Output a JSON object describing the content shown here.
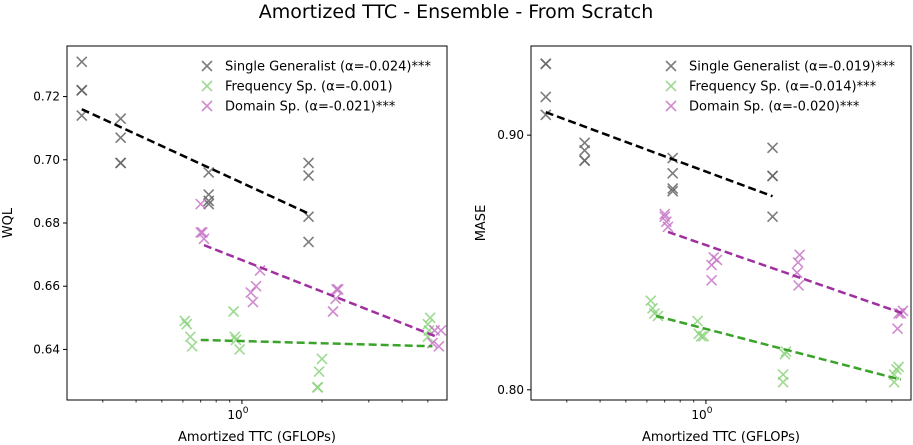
{
  "figure": {
    "title": "Amortized TTC - Ensemble - From Scratch"
  },
  "colors": {
    "Single Generalist": "#666666",
    "Frequency Sp.": "#8ed47f",
    "Domain Sp.": "#c878c8",
    "fit_Single Generalist": "#000000",
    "fit_Frequency Sp.": "#3aa32a",
    "fit_Domain Sp.": "#a030a0"
  },
  "chart_data": [
    {
      "type": "scatter",
      "title": "",
      "xlabel": "Amortized TTC (GFLOPs)",
      "ylabel": "WQL",
      "xscale": "log",
      "xlim": [
        0.22,
        5.9
      ],
      "ylim": [
        0.624,
        0.736
      ],
      "xticks": [
        {
          "value": 1,
          "label": "10^0"
        }
      ],
      "yticks": [
        0.64,
        0.66,
        0.68,
        0.7,
        0.72
      ],
      "yticklabels": [
        "0.64",
        "0.66",
        "0.68",
        "0.70",
        "0.72"
      ],
      "legend": "top-right",
      "series": [
        {
          "name": "Single Generalist (α=-0.024)***",
          "key": "Single Generalist",
          "points": [
            [
              0.25,
              0.731
            ],
            [
              0.25,
              0.722
            ],
            [
              0.25,
              0.722
            ],
            [
              0.25,
              0.714
            ],
            [
              0.35,
              0.713
            ],
            [
              0.35,
              0.707
            ],
            [
              0.35,
              0.699
            ],
            [
              0.35,
              0.699
            ],
            [
              0.75,
              0.696
            ],
            [
              0.75,
              0.689
            ],
            [
              0.75,
              0.687
            ],
            [
              0.75,
              0.686
            ],
            [
              1.78,
              0.699
            ],
            [
              1.78,
              0.695
            ],
            [
              1.78,
              0.682
            ],
            [
              1.78,
              0.674
            ]
          ],
          "fit": [
            [
              0.25,
              0.716
            ],
            [
              1.78,
              0.683
            ]
          ]
        },
        {
          "name": "Frequency Sp. (α=-0.001)",
          "key": "Frequency Sp.",
          "points": [
            [
              0.61,
              0.649
            ],
            [
              0.62,
              0.648
            ],
            [
              0.64,
              0.644
            ],
            [
              0.65,
              0.641
            ],
            [
              0.93,
              0.652
            ],
            [
              0.94,
              0.644
            ],
            [
              0.95,
              0.643
            ],
            [
              0.98,
              0.64
            ],
            [
              2.0,
              0.637
            ],
            [
              1.95,
              0.633
            ],
            [
              1.93,
              0.628
            ],
            [
              1.92,
              0.628
            ],
            [
              5.1,
              0.65
            ],
            [
              5.05,
              0.646
            ],
            [
              5.0,
              0.648
            ],
            [
              5.0,
              0.644
            ]
          ],
          "fit": [
            [
              0.7,
              0.643
            ],
            [
              5.2,
              0.641
            ]
          ]
        },
        {
          "name": "Domain Sp. (α=-0.021)***",
          "key": "Domain Sp.",
          "points": [
            [
              0.7,
              0.686
            ],
            [
              0.7,
              0.677
            ],
            [
              0.71,
              0.677
            ],
            [
              0.72,
              0.675
            ],
            [
              1.08,
              0.658
            ],
            [
              1.1,
              0.655
            ],
            [
              1.13,
              0.66
            ],
            [
              1.17,
              0.665
            ],
            [
              2.3,
              0.659
            ],
            [
              2.27,
              0.659
            ],
            [
              2.25,
              0.656
            ],
            [
              2.2,
              0.652
            ],
            [
              5.6,
              0.646
            ],
            [
              5.3,
              0.646
            ],
            [
              5.2,
              0.642
            ],
            [
              5.5,
              0.641
            ]
          ],
          "fit": [
            [
              0.72,
              0.673
            ],
            [
              5.4,
              0.644
            ]
          ]
        }
      ]
    },
    {
      "type": "scatter",
      "title": "",
      "xlabel": "Amortized TTC (GFLOPs)",
      "ylabel": "MASE",
      "xscale": "log",
      "xlim": [
        0.22,
        5.9
      ],
      "ylim": [
        0.796,
        0.935
      ],
      "xticks": [
        {
          "value": 1,
          "label": "10^0"
        }
      ],
      "yticks": [
        0.8,
        0.9
      ],
      "yticklabels": [
        "0.80",
        "0.90"
      ],
      "legend": "top-right",
      "series": [
        {
          "name": "Single Generalist (α=-0.019)***",
          "key": "Single Generalist",
          "points": [
            [
              0.25,
              0.928
            ],
            [
              0.25,
              0.928
            ],
            [
              0.25,
              0.915
            ],
            [
              0.25,
              0.908
            ],
            [
              0.35,
              0.897
            ],
            [
              0.35,
              0.894
            ],
            [
              0.35,
              0.89
            ],
            [
              0.35,
              0.89
            ],
            [
              0.75,
              0.891
            ],
            [
              0.75,
              0.885
            ],
            [
              0.75,
              0.879
            ],
            [
              0.75,
              0.878
            ],
            [
              1.78,
              0.895
            ],
            [
              1.78,
              0.884
            ],
            [
              1.78,
              0.884
            ],
            [
              1.78,
              0.868
            ]
          ],
          "fit": [
            [
              0.25,
              0.909
            ],
            [
              1.78,
              0.876
            ]
          ]
        },
        {
          "name": "Frequency Sp. (α=-0.014)***",
          "key": "Frequency Sp.",
          "points": [
            [
              0.62,
              0.835
            ],
            [
              0.63,
              0.832
            ],
            [
              0.64,
              0.83
            ],
            [
              0.66,
              0.829
            ],
            [
              0.93,
              0.827
            ],
            [
              0.94,
              0.822
            ],
            [
              0.96,
              0.821
            ],
            [
              0.98,
              0.821
            ],
            [
              2.0,
              0.815
            ],
            [
              1.98,
              0.814
            ],
            [
              1.95,
              0.806
            ],
            [
              1.95,
              0.803
            ],
            [
              5.3,
              0.809
            ],
            [
              5.2,
              0.808
            ],
            [
              5.1,
              0.806
            ],
            [
              5.1,
              0.803
            ]
          ],
          "fit": [
            [
              0.65,
              0.829
            ],
            [
              5.4,
              0.804
            ]
          ]
        },
        {
          "name": "Domain Sp. (α=-0.020)***",
          "key": "Domain Sp.",
          "points": [
            [
              0.7,
              0.869
            ],
            [
              0.7,
              0.868
            ],
            [
              0.71,
              0.866
            ],
            [
              0.72,
              0.864
            ],
            [
              1.05,
              0.849
            ],
            [
              1.07,
              0.852
            ],
            [
              1.1,
              0.851
            ],
            [
              1.05,
              0.843
            ],
            [
              2.25,
              0.853
            ],
            [
              2.22,
              0.85
            ],
            [
              2.2,
              0.846
            ],
            [
              2.23,
              0.841
            ],
            [
              5.5,
              0.831
            ],
            [
              5.4,
              0.83
            ],
            [
              5.3,
              0.83
            ],
            [
              5.25,
              0.824
            ]
          ],
          "fit": [
            [
              0.72,
              0.862
            ],
            [
              5.5,
              0.83
            ]
          ]
        }
      ]
    }
  ]
}
